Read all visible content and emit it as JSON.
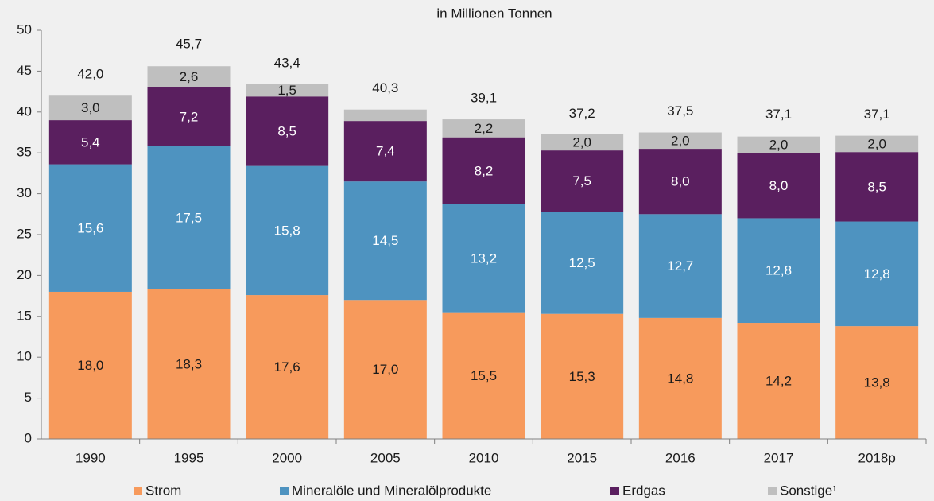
{
  "chart_data": {
    "type": "stacked_bar",
    "subtitle": "in Millionen Tonnen",
    "categories": [
      "1990",
      "1995",
      "2000",
      "2005",
      "2010",
      "2015",
      "2016",
      "2017",
      "2018p"
    ],
    "series": [
      {
        "name": "Strom",
        "color": "#f79a5c",
        "values": [
          18.0,
          18.3,
          17.6,
          17.0,
          15.5,
          15.3,
          14.8,
          14.2,
          13.8
        ],
        "value_labels": [
          "18,0",
          "18,3",
          "17,6",
          "17,0",
          "15,5",
          "15,3",
          "14,8",
          "14,2",
          "13,8"
        ]
      },
      {
        "name": "Mineralöle und Mineralölprodukte",
        "color": "#4e93c0",
        "values": [
          15.6,
          17.5,
          15.8,
          14.5,
          13.2,
          12.5,
          12.7,
          12.8,
          12.8
        ],
        "value_labels": [
          "15,6",
          "17,5",
          "15,8",
          "14,5",
          "13,2",
          "12,5",
          "12,7",
          "12,8",
          "12,8"
        ]
      },
      {
        "name": "Erdgas",
        "color": "#5a1f5f",
        "values": [
          5.4,
          7.2,
          8.5,
          7.4,
          8.2,
          7.5,
          8.0,
          8.0,
          8.5
        ],
        "value_labels": [
          "5,4",
          "7,2",
          "8,5",
          "7,4",
          "8,2",
          "7,5",
          "8,0",
          "8,0",
          "8,5"
        ]
      },
      {
        "name": "Sonstige¹",
        "color": "#bfbfbf",
        "values": [
          3.0,
          2.6,
          1.5,
          1.4,
          2.2,
          2.0,
          2.0,
          2.0,
          2.0
        ],
        "value_labels": [
          "3,0",
          "2,6",
          "1,5",
          null,
          "2,2",
          "2,0",
          "2,0",
          "2,0",
          "2,0"
        ]
      }
    ],
    "totals": [
      42.0,
      45.7,
      43.4,
      40.3,
      39.1,
      37.2,
      37.5,
      37.1,
      37.1
    ],
    "total_labels": [
      "42,0",
      "45,7",
      "43,4",
      "40,3",
      "39,1",
      "37,2",
      "37,5",
      "37,1",
      "37,1"
    ],
    "ylim": [
      0,
      50
    ],
    "yticks": [
      0,
      5,
      10,
      15,
      20,
      25,
      30,
      35,
      40,
      45,
      50
    ],
    "grid": false
  }
}
